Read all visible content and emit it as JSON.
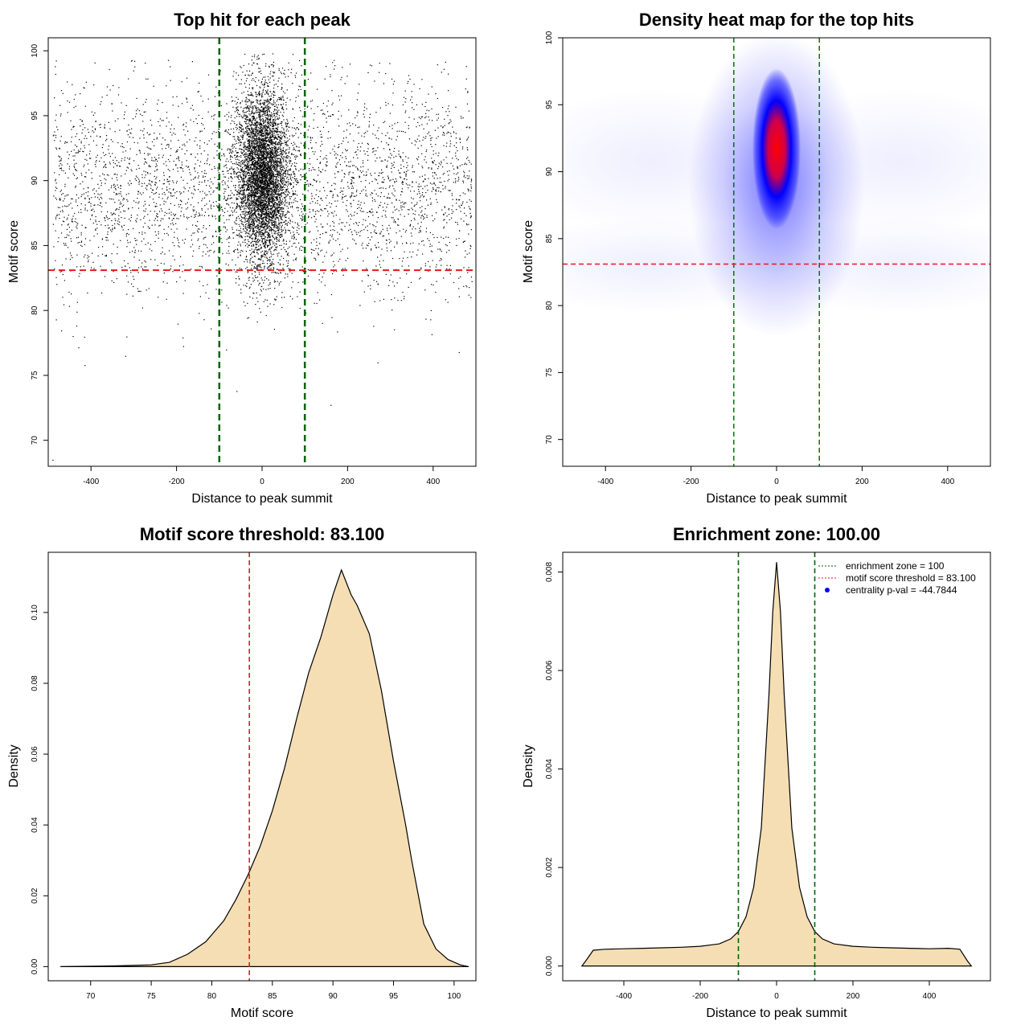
{
  "chart_data": [
    {
      "type": "scatter",
      "title": "Top hit for each peak",
      "xlabel": "Distance to peak summit",
      "ylabel": "Motif score",
      "xlim": [
        -500,
        500
      ],
      "ylim": [
        68,
        101
      ],
      "xticks": [
        -400,
        -200,
        0,
        200,
        400
      ],
      "yticks": [
        70,
        75,
        80,
        85,
        90,
        95,
        100
      ],
      "vlines": [
        -100,
        100
      ],
      "vline_color": "#006400",
      "hline": 83.1,
      "hline_color": "#e31a1c",
      "point_color": "#000000",
      "point_distribution": {
        "background": {
          "x_range": [
            -490,
            490
          ],
          "y_mean": 89.5,
          "y_sd": 4.0
        },
        "central": {
          "x_mean": 0,
          "x_sd": 30,
          "y_mean": 90.5,
          "y_sd": 3.3
        },
        "outliers": [
          [
            -490,
            68.5
          ],
          [
            -415,
            75.8
          ],
          [
            -60,
            73.8
          ],
          [
            -320,
            76.5
          ],
          [
            270,
            76.0
          ],
          [
            460,
            76.8
          ]
        ]
      }
    },
    {
      "type": "heatmap",
      "title": "Density heat map for the top hits",
      "xlabel": "Distance to peak summit",
      "ylabel": "Motif score",
      "xlim": [
        -500,
        500
      ],
      "ylim": [
        68,
        100
      ],
      "xticks": [
        -400,
        -200,
        0,
        200,
        400
      ],
      "yticks": [
        70,
        75,
        80,
        85,
        90,
        95,
        100
      ],
      "vlines": [
        -100,
        100
      ],
      "vline_color": "#006400",
      "hline": 83.1,
      "hline_color": "#e31a1c",
      "colors": [
        "#ffffff",
        "#0000ff",
        "#ff0000"
      ],
      "peak": {
        "x": 0,
        "y": 91.5
      }
    },
    {
      "type": "area",
      "title": "Motif score threshold: 83.100",
      "xlabel": "Motif score",
      "ylabel": "Density",
      "xlim": [
        66.5,
        101.8
      ],
      "ylim": [
        -0.004,
        0.117
      ],
      "xticks": [
        70,
        75,
        80,
        85,
        90,
        95,
        100
      ],
      "yticks": [
        0.0,
        0.02,
        0.04,
        0.06,
        0.08,
        0.1
      ],
      "ytick_labels": [
        "0.00",
        "0.02",
        "0.04",
        "0.06",
        "0.08",
        "0.10"
      ],
      "vline": 83.1,
      "vline_color": "#e31a1c",
      "fill": "#f5deb3",
      "x": [
        67.5,
        72,
        75,
        76.5,
        78,
        79.5,
        81,
        82,
        83,
        84,
        85,
        86,
        87,
        88,
        89,
        90,
        90.7,
        91.5,
        92,
        93,
        94,
        95,
        96,
        96.5,
        97.5,
        98.5,
        99.5,
        100.5,
        101.2
      ],
      "y": [
        0.0,
        0.0002,
        0.0005,
        0.0012,
        0.0035,
        0.007,
        0.013,
        0.019,
        0.026,
        0.034,
        0.044,
        0.056,
        0.07,
        0.083,
        0.093,
        0.105,
        0.112,
        0.105,
        0.102,
        0.094,
        0.078,
        0.058,
        0.04,
        0.03,
        0.012,
        0.005,
        0.002,
        0.0005,
        0.0
      ]
    },
    {
      "type": "area",
      "title": "Enrichment zone: 100.00",
      "xlabel": "Distance to peak summit",
      "ylabel": "Density",
      "xlim": [
        -560,
        560
      ],
      "ylim": [
        -0.0003,
        0.0084
      ],
      "xticks": [
        -400,
        -200,
        0,
        200,
        400
      ],
      "yticks": [
        0.0,
        0.002,
        0.004,
        0.006,
        0.008
      ],
      "ytick_labels": [
        "0.000",
        "0.002",
        "0.004",
        "0.006",
        "0.008"
      ],
      "vlines": [
        -100,
        100
      ],
      "vline_color": "#006400",
      "fill": "#f5deb3",
      "x": [
        -510,
        -500,
        -480,
        -450,
        -400,
        -350,
        -300,
        -250,
        -200,
        -150,
        -120,
        -100,
        -80,
        -60,
        -40,
        -20,
        -10,
        0,
        10,
        20,
        40,
        60,
        80,
        100,
        120,
        150,
        200,
        250,
        300,
        350,
        400,
        450,
        480,
        500,
        510
      ],
      "y": [
        0.0,
        0.0001,
        0.00032,
        0.00034,
        0.00035,
        0.00036,
        0.00037,
        0.00038,
        0.0004,
        0.00045,
        0.00055,
        0.0007,
        0.001,
        0.0016,
        0.0028,
        0.0055,
        0.0072,
        0.0082,
        0.0072,
        0.0055,
        0.0028,
        0.0016,
        0.001,
        0.0007,
        0.00055,
        0.00045,
        0.0004,
        0.00038,
        0.00037,
        0.00036,
        0.00035,
        0.00036,
        0.00034,
        0.0001,
        0.0
      ],
      "legend": {
        "placement": "top-right",
        "entries": [
          {
            "label": "enrichment zone = 100",
            "color": "#006400",
            "symbol": "dotted-line"
          },
          {
            "label": "motif score threshold = 83.100",
            "color": "#e31a1c",
            "symbol": "dotted-line"
          },
          {
            "label": "centrality p-val = -44.7844",
            "color": "#0000ff",
            "symbol": "point"
          }
        ]
      }
    }
  ]
}
